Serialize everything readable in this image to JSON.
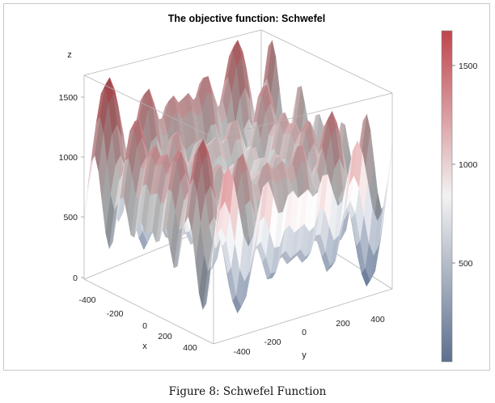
{
  "caption": "Figure 8: Schwefel Function",
  "chart_data": {
    "type": "surface",
    "title": "The objective function: Schwefel",
    "xlabel": "x",
    "ylabel": "y",
    "zlabel": "z",
    "xlim": [
      -500,
      500
    ],
    "ylim": [
      -500,
      500
    ],
    "zlim": [
      0,
      1676
    ],
    "function": "z = 418.9829*2 - x*sin(sqrt(|x|)) - y*sin(sqrt(|y|))",
    "x_ticks": [
      "-400",
      "-200",
      "0",
      "200",
      "400"
    ],
    "y_ticks": [
      "-400",
      "-200",
      "0",
      "200",
      "400"
    ],
    "z_ticks": [
      "0",
      "500",
      "1000",
      "1500"
    ],
    "colorbar": {
      "ticks": [
        "500",
        "1000",
        "1500"
      ],
      "range": [
        0,
        1676
      ],
      "colors": {
        "low": "#5c6f8e",
        "mid": "#f2f2f2",
        "high": "#c0454c"
      }
    },
    "grid": false,
    "legend": "right"
  }
}
